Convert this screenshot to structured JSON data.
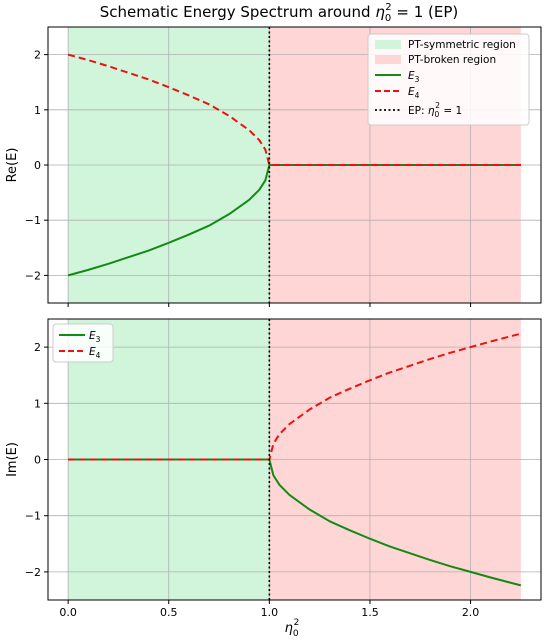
{
  "chart_data": {
    "title_prefix": "Schematic Energy Spectrum around ",
    "title_math_base": "η",
    "title_math_sub": "0",
    "title_math_sup": "2",
    "title_suffix": " = 1 (EP)",
    "xlabel_base": "η",
    "xlabel_sub": "0",
    "xlabel_sup": "2",
    "x_range": [
      -0.1,
      2.35
    ],
    "x_ticks": [
      0.0,
      0.5,
      1.0,
      1.5,
      2.0
    ],
    "x_tick_labels": [
      "0.0",
      "0.5",
      "1.0",
      "1.5",
      "2.0"
    ],
    "ep_x": 1.0,
    "colors": {
      "symmetric_fill": "#d0f5db",
      "broken_fill": "#ffd6d6",
      "e3": "#138a13",
      "e4": "#ee1111",
      "ep_line": "#000000",
      "grid": "#b0b0b0"
    },
    "panels": [
      {
        "type": "line",
        "ylabel": "Re(E)",
        "ylim": [
          -2.5,
          2.5
        ],
        "y_ticks": [
          -2,
          -1,
          0,
          1,
          2
        ],
        "y_tick_labels": [
          "−2",
          "−1",
          "0",
          "1",
          "2"
        ],
        "grid": true,
        "legend_position": "top-right",
        "legend": {
          "symmetric_label": "PT-symmetric region",
          "broken_label": "PT-broken region",
          "e3_base": "E",
          "e3_sub": "3",
          "e4_base": "E",
          "e4_sub": "4",
          "ep_prefix": "EP: ",
          "ep_base": "η",
          "ep_sub": "0",
          "ep_sup": "2",
          "ep_suffix": " = 1"
        },
        "series": [
          {
            "name": "E3",
            "style": "solid",
            "x": [
              0.0,
              0.1,
              0.2,
              0.3,
              0.4,
              0.5,
              0.6,
              0.7,
              0.8,
              0.9,
              0.95,
              0.98,
              1.0,
              1.25,
              1.5,
              1.75,
              2.0,
              2.25
            ],
            "y": [
              -2.0,
              -1.9,
              -1.79,
              -1.67,
              -1.55,
              -1.41,
              -1.26,
              -1.1,
              -0.89,
              -0.63,
              -0.45,
              -0.28,
              0.0,
              0.0,
              0.0,
              0.0,
              0.0,
              0.0
            ]
          },
          {
            "name": "E4",
            "style": "dashed",
            "x": [
              0.0,
              0.1,
              0.2,
              0.3,
              0.4,
              0.5,
              0.6,
              0.7,
              0.8,
              0.9,
              0.95,
              0.98,
              1.0,
              1.25,
              1.5,
              1.75,
              2.0,
              2.25
            ],
            "y": [
              2.0,
              1.9,
              1.79,
              1.67,
              1.55,
              1.41,
              1.26,
              1.1,
              0.89,
              0.63,
              0.45,
              0.28,
              0.0,
              0.0,
              0.0,
              0.0,
              0.0,
              0.0
            ]
          }
        ]
      },
      {
        "type": "line",
        "ylabel": "Im(E)",
        "ylim": [
          -2.5,
          2.5
        ],
        "y_ticks": [
          -2,
          -1,
          0,
          1,
          2
        ],
        "y_tick_labels": [
          "−2",
          "−1",
          "0",
          "1",
          "2"
        ],
        "grid": true,
        "legend_position": "top-left",
        "legend": {
          "e3_base": "E",
          "e3_sub": "3",
          "e4_base": "E",
          "e4_sub": "4"
        },
        "series": [
          {
            "name": "E3",
            "style": "solid",
            "x": [
              0.0,
              0.25,
              0.5,
              0.75,
              1.0,
              1.02,
              1.05,
              1.1,
              1.2,
              1.3,
              1.4,
              1.5,
              1.6,
              1.7,
              1.8,
              1.9,
              2.0,
              2.1,
              2.25
            ],
            "y": [
              0.0,
              0.0,
              0.0,
              0.0,
              0.0,
              -0.28,
              -0.45,
              -0.63,
              -0.89,
              -1.1,
              -1.26,
              -1.41,
              -1.55,
              -1.67,
              -1.79,
              -1.9,
              -2.0,
              -2.1,
              -2.24
            ]
          },
          {
            "name": "E4",
            "style": "dashed",
            "x": [
              0.0,
              0.25,
              0.5,
              0.75,
              1.0,
              1.02,
              1.05,
              1.1,
              1.2,
              1.3,
              1.4,
              1.5,
              1.6,
              1.7,
              1.8,
              1.9,
              2.0,
              2.1,
              2.25
            ],
            "y": [
              0.0,
              0.0,
              0.0,
              0.0,
              0.0,
              0.28,
              0.45,
              0.63,
              0.89,
              1.1,
              1.26,
              1.41,
              1.55,
              1.67,
              1.79,
              1.9,
              2.0,
              2.1,
              2.24
            ]
          }
        ]
      }
    ]
  }
}
